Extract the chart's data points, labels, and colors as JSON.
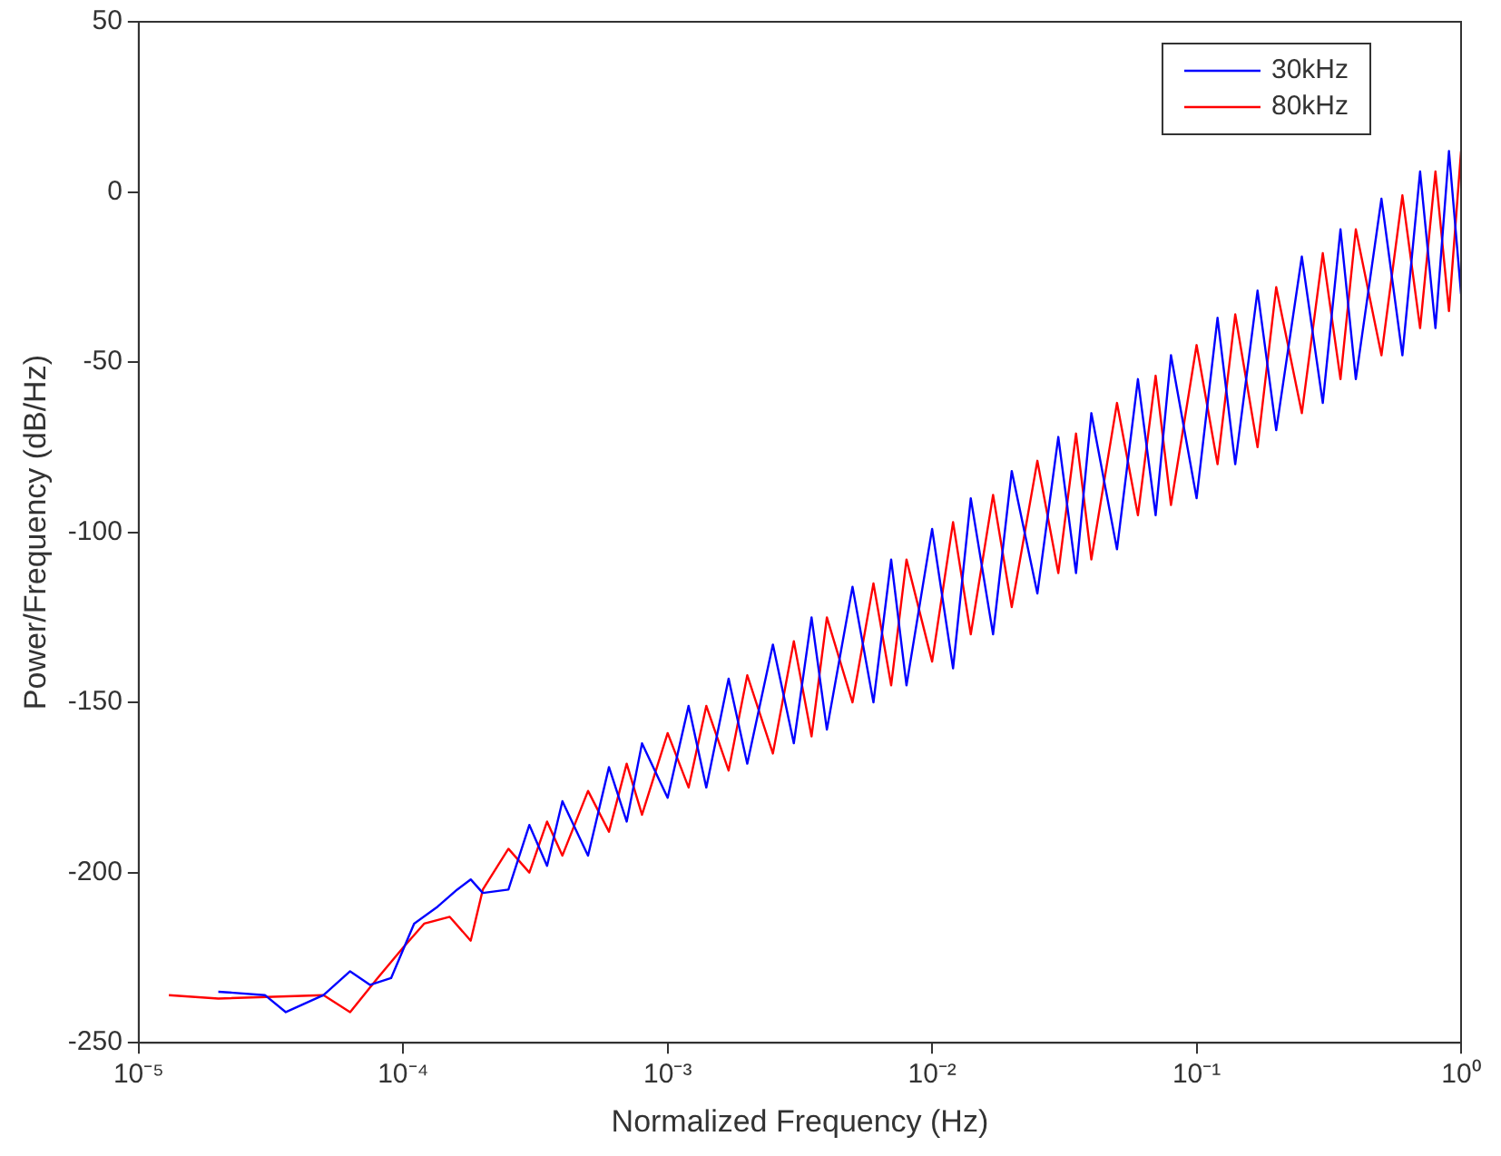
{
  "chart_data": {
    "type": "line",
    "xlabel": "Normalized Frequency (Hz)",
    "ylabel": "Power/Frequency (dB/Hz)",
    "log": "x",
    "xlim": [
      1e-05,
      1
    ],
    "ylim": [
      -250,
      50
    ],
    "xticks": [
      {
        "value": 1e-05,
        "label": "10⁻⁵"
      },
      {
        "value": 0.0001,
        "label": "10⁻⁴"
      },
      {
        "value": 0.001,
        "label": "10⁻³"
      },
      {
        "value": 0.01,
        "label": "10⁻²"
      },
      {
        "value": 0.1,
        "label": "10⁻¹"
      },
      {
        "value": 1,
        "label": "10⁰"
      }
    ],
    "yticks": [
      -250,
      -200,
      -150,
      -100,
      -50,
      0,
      50
    ],
    "grid": false,
    "legend": "top right",
    "marker": "none",
    "line_style": "solid",
    "series": [
      {
        "name": "30kHz",
        "color": "#0000ff",
        "x": [
          2e-05,
          3e-05,
          3.6e-05,
          5e-05,
          6.3e-05,
          7.5e-05,
          9e-05,
          0.00011,
          0.000135,
          0.00016,
          0.00018,
          0.0002,
          0.00025,
          0.0003,
          0.00035,
          0.0004,
          0.0005,
          0.0006,
          0.0007,
          0.0008,
          0.001,
          0.0012,
          0.0014,
          0.0017,
          0.002,
          0.0025,
          0.003,
          0.0035,
          0.004,
          0.005,
          0.006,
          0.007,
          0.008,
          0.01,
          0.012,
          0.014,
          0.017,
          0.02,
          0.025,
          0.03,
          0.035,
          0.04,
          0.05,
          0.06,
          0.07,
          0.08,
          0.1,
          0.12,
          0.14,
          0.17,
          0.2,
          0.25,
          0.3,
          0.35,
          0.4,
          0.5,
          0.6,
          0.7,
          0.8,
          0.9,
          1
        ],
        "values": [
          -235,
          -236,
          -241,
          -236,
          -229,
          -233,
          -231,
          -215,
          -210,
          -205,
          -202,
          -206,
          -205,
          -186,
          -198,
          -179,
          -195,
          -169,
          -185,
          -162,
          -178,
          -151,
          -175,
          -143,
          -168,
          -133,
          -162,
          -125,
          -158,
          -116,
          -150,
          -108,
          -145,
          -99,
          -140,
          -90,
          -130,
          -82,
          -118,
          -72,
          -112,
          -65,
          -105,
          -55,
          -95,
          -48,
          -90,
          -37,
          -80,
          -29,
          -70,
          -19,
          -62,
          -11,
          -55,
          -2,
          -48,
          6,
          -40,
          12,
          -30
        ]
      },
      {
        "name": "80kHz",
        "color": "#ff0000",
        "x": [
          1.3e-05,
          2e-05,
          5e-05,
          6.3e-05,
          8e-05,
          0.0001,
          0.00012,
          0.00015,
          0.00018,
          0.0002,
          0.00025,
          0.0003,
          0.00035,
          0.0004,
          0.0005,
          0.0006,
          0.0007,
          0.0008,
          0.001,
          0.0012,
          0.0014,
          0.0017,
          0.002,
          0.0025,
          0.003,
          0.0035,
          0.004,
          0.005,
          0.006,
          0.007,
          0.008,
          0.01,
          0.012,
          0.014,
          0.017,
          0.02,
          0.025,
          0.03,
          0.035,
          0.04,
          0.05,
          0.06,
          0.07,
          0.08,
          0.1,
          0.12,
          0.14,
          0.17,
          0.2,
          0.25,
          0.3,
          0.35,
          0.4,
          0.5,
          0.6,
          0.7,
          0.8,
          0.9,
          1
        ],
        "values": [
          -236,
          -237,
          -236,
          -241,
          -231,
          -222,
          -215,
          -213,
          -220,
          -205,
          -193,
          -200,
          -185,
          -195,
          -176,
          -188,
          -168,
          -183,
          -159,
          -175,
          -151,
          -170,
          -142,
          -165,
          -132,
          -160,
          -125,
          -150,
          -115,
          -145,
          -108,
          -138,
          -97,
          -130,
          -89,
          -122,
          -79,
          -112,
          -71,
          -108,
          -62,
          -95,
          -54,
          -92,
          -45,
          -80,
          -36,
          -75,
          -28,
          -65,
          -18,
          -55,
          -11,
          -48,
          -1,
          -40,
          6,
          -35,
          12
        ]
      }
    ]
  }
}
